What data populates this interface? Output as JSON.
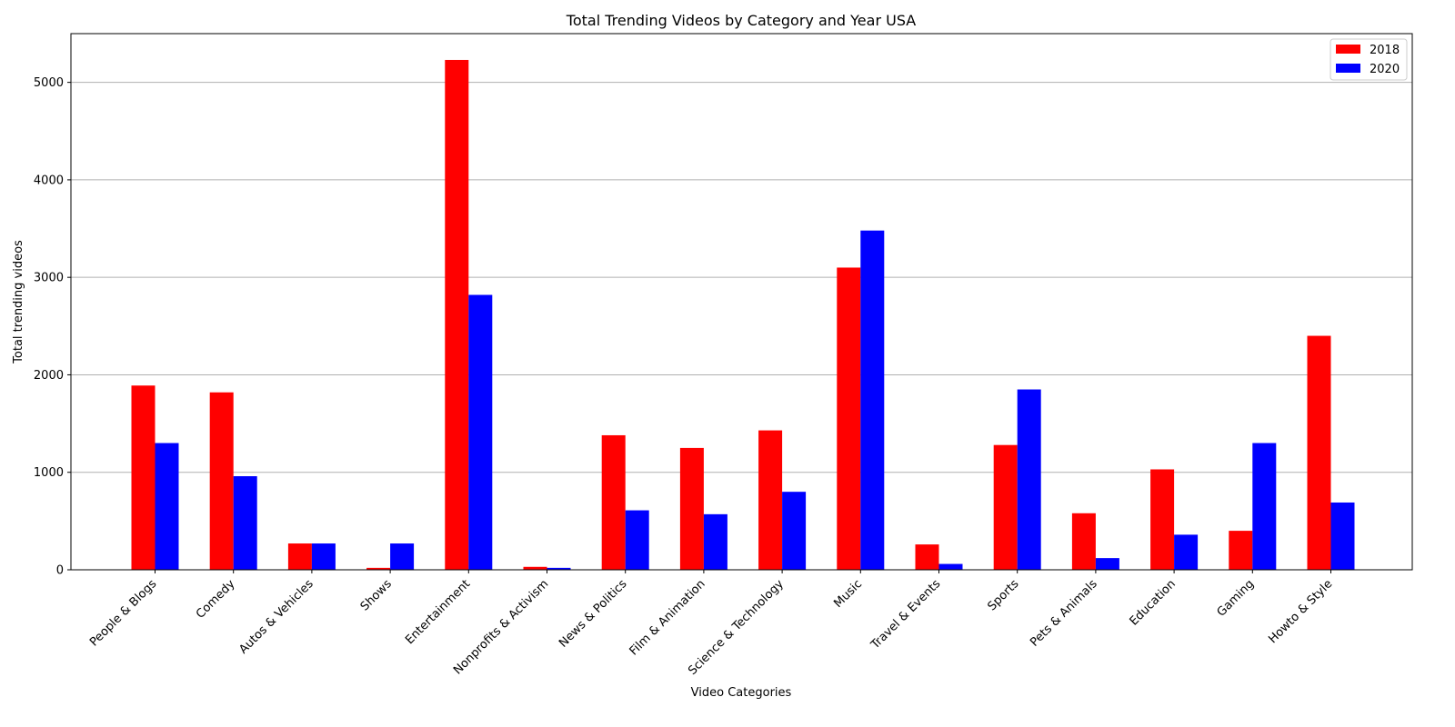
{
  "chart_data": {
    "type": "bar",
    "title": "Total Trending Videos by Category and Year USA",
    "xlabel": "Video Categories",
    "ylabel": "Total trending videos",
    "ylim": [
      0,
      5500
    ],
    "yticks": [
      0,
      1000,
      2000,
      3000,
      4000,
      5000
    ],
    "grid": "horizontal",
    "legend_position": "top-right",
    "categories": [
      "People & Blogs",
      "Comedy",
      "Autos & Vehicles",
      "Shows",
      "Entertainment",
      "Nonprofits & Activism",
      "News & Politics",
      "Film & Animation",
      "Science & Technology",
      "Music",
      "Travel & Events",
      "Sports",
      "Pets & Animals",
      "Education",
      "Gaming",
      "Howto & Style"
    ],
    "series": [
      {
        "name": "2018",
        "color": "#ff0000",
        "values": [
          1890,
          1820,
          270,
          20,
          5230,
          30,
          1380,
          1250,
          1430,
          3100,
          260,
          1280,
          580,
          1030,
          400,
          2400
        ]
      },
      {
        "name": "2020",
        "color": "#0000ff",
        "values": [
          1300,
          960,
          270,
          270,
          2820,
          20,
          610,
          570,
          800,
          3480,
          60,
          1850,
          120,
          360,
          1300,
          690
        ]
      }
    ]
  }
}
